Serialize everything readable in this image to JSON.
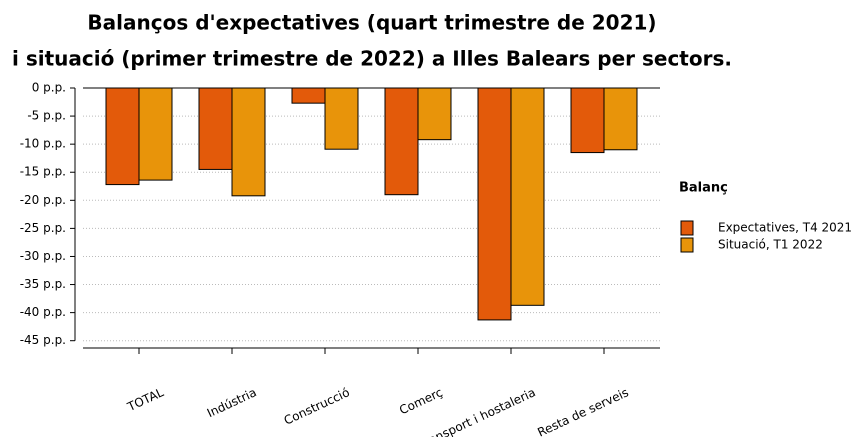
{
  "chart_data": {
    "type": "bar",
    "title": "Balanços d'expectatives (quart trimestre de 2021)",
    "subtitle": "i situació (primer trimestre de 2022) a Illes Balears per sectors.",
    "categories": [
      "TOTAL",
      "Indústria",
      "Construcció",
      "Comerç",
      "Transport i hostaleria",
      "Resta de serveis"
    ],
    "series": [
      {
        "name": "Expectatives, T4 2021",
        "color": "#e35a0a",
        "values": [
          -17.2,
          -14.5,
          -2.7,
          -19.0,
          -41.3,
          -11.5
        ]
      },
      {
        "name": "Situació, T1 2022",
        "color": "#e8940a",
        "values": [
          -16.4,
          -19.2,
          -10.9,
          -9.2,
          -38.7,
          -11.0
        ]
      }
    ],
    "ylim": [
      -46.3,
      0
    ],
    "yticks": [
      {
        "value": 0,
        "label": "0 p.p."
      },
      {
        "value": -5,
        "label": "-5 p.p."
      },
      {
        "value": -10,
        "label": "-10 p.p."
      },
      {
        "value": -15,
        "label": "-15 p.p."
      },
      {
        "value": -20,
        "label": "-20 p.p."
      },
      {
        "value": -25,
        "label": "-25 p.p."
      },
      {
        "value": -30,
        "label": "-30 p.p."
      },
      {
        "value": -35,
        "label": "-35 p.p."
      },
      {
        "value": -40,
        "label": "-40 p.p."
      },
      {
        "value": -45,
        "label": "-45 p.p."
      }
    ],
    "grid": true,
    "legend_title": "Balanç",
    "legend_position": "right"
  }
}
